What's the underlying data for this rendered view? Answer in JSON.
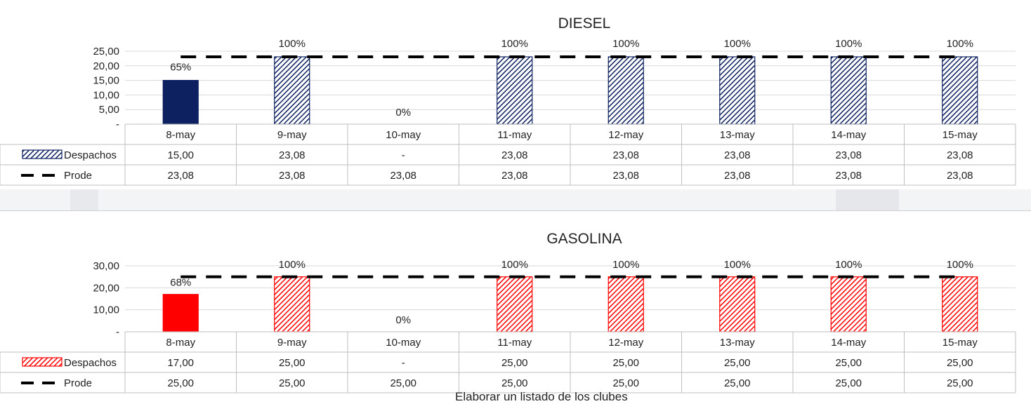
{
  "chart_data": [
    {
      "type": "bar",
      "title": "DIESEL",
      "categories": [
        "8-may",
        "9-may",
        "10-may",
        "11-may",
        "12-may",
        "13-may",
        "14-may",
        "15-may"
      ],
      "ylim": [
        0,
        25
      ],
      "yticks": [
        "25,00",
        "20,00",
        "15,00",
        "10,00",
        "5,00",
        "-"
      ],
      "series": [
        {
          "name": "Despachos",
          "kind": "bar",
          "values": [
            15.0,
            23.08,
            0,
            23.08,
            23.08,
            23.08,
            23.08,
            23.08
          ],
          "display": [
            "15,00",
            "23,08",
            "-",
            "23,08",
            "23,08",
            "23,08",
            "23,08",
            "23,08"
          ],
          "data_labels": [
            "65%",
            "100%",
            "0%",
            "100%",
            "100%",
            "100%",
            "100%",
            "100%"
          ],
          "solid_first": true
        },
        {
          "name": "Prode",
          "kind": "dashed-line",
          "values": [
            23.08,
            23.08,
            23.08,
            23.08,
            23.08,
            23.08,
            23.08,
            23.08
          ],
          "display": [
            "23,08",
            "23,08",
            "23,08",
            "23,08",
            "23,08",
            "23,08",
            "23,08",
            "23,08"
          ]
        }
      ],
      "colors": {
        "bar": "#0d2160",
        "line": "#000000"
      },
      "data_table": true,
      "grid": true
    },
    {
      "type": "bar",
      "title": "GASOLINA",
      "categories": [
        "8-may",
        "9-may",
        "10-may",
        "11-may",
        "12-may",
        "13-may",
        "14-may",
        "15-may"
      ],
      "ylim": [
        0,
        30
      ],
      "yticks": [
        "30,00",
        "20,00",
        "10,00",
        "-"
      ],
      "series": [
        {
          "name": "Despachos",
          "kind": "bar",
          "values": [
            17.0,
            25.0,
            0,
            25.0,
            25.0,
            25.0,
            25.0,
            25.0
          ],
          "display": [
            "17,00",
            "25,00",
            "-",
            "25,00",
            "25,00",
            "25,00",
            "25,00",
            "25,00"
          ],
          "data_labels": [
            "68%",
            "100%",
            "0%",
            "100%",
            "100%",
            "100%",
            "100%",
            "100%"
          ],
          "solid_first": true
        },
        {
          "name": "Prode",
          "kind": "dashed-line",
          "values": [
            25.0,
            25.0,
            25.0,
            25.0,
            25.0,
            25.0,
            25.0,
            25.0
          ],
          "display": [
            "25,00",
            "25,00",
            "25,00",
            "25,00",
            "25,00",
            "25,00",
            "25,00",
            "25,00"
          ]
        }
      ],
      "colors": {
        "bar": "#ff0000",
        "line": "#000000"
      },
      "data_table": true,
      "grid": true
    }
  ],
  "footnote": "Elaborar un listado de los clubes"
}
